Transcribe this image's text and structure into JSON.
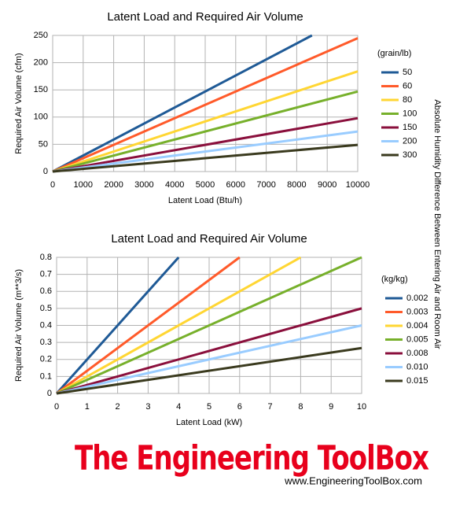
{
  "chart_data": [
    {
      "type": "line",
      "title": "Latent Load and Required Air Volume",
      "x_label": "Latent Load (Btu/h)",
      "y_label": "Required Air Volume (cfm)",
      "xlim": [
        0,
        10000
      ],
      "ylim": [
        0,
        250
      ],
      "xticks": [
        0,
        1000,
        2000,
        3000,
        4000,
        5000,
        6000,
        7000,
        8000,
        9000,
        10000
      ],
      "yticks": [
        0,
        50,
        100,
        150,
        200,
        250
      ],
      "grid": true,
      "legend_title": "(grain/lb)",
      "legend": "right",
      "series": [
        {
          "name": "50",
          "color": "#1f5a96",
          "x": [
            0,
            8500
          ],
          "values": [
            0,
            250
          ]
        },
        {
          "name": "60",
          "color": "#ff5a2a",
          "x": [
            0,
            10000
          ],
          "values": [
            0,
            245
          ]
        },
        {
          "name": "80",
          "color": "#ffd633",
          "x": [
            0,
            10000
          ],
          "values": [
            0,
            184
          ]
        },
        {
          "name": "100",
          "color": "#77b02b",
          "x": [
            0,
            10000
          ],
          "values": [
            0,
            147
          ]
        },
        {
          "name": "150",
          "color": "#8a0f3c",
          "x": [
            0,
            10000
          ],
          "values": [
            0,
            98
          ]
        },
        {
          "name": "200",
          "color": "#99ccff",
          "x": [
            0,
            10000
          ],
          "values": [
            0,
            73.5
          ]
        },
        {
          "name": "300",
          "color": "#3a3a1e",
          "x": [
            0,
            10000
          ],
          "values": [
            0,
            49
          ]
        }
      ]
    },
    {
      "type": "line",
      "title": "Latent Load and Required Air Volume",
      "x_label": "Latent Load (kW)",
      "y_label": "Required Air Volume (m**3/s)",
      "xlim": [
        0,
        10
      ],
      "ylim": [
        0,
        0.8
      ],
      "xticks": [
        0,
        1,
        2,
        3,
        4,
        5,
        6,
        7,
        8,
        9,
        10
      ],
      "yticks": [
        0,
        0.1,
        0.2,
        0.3,
        0.4,
        0.5,
        0.6,
        0.7,
        0.8
      ],
      "grid": true,
      "legend_title": "(kg/kg)",
      "legend": "right",
      "series": [
        {
          "name": "0.002",
          "color": "#1f5a96",
          "x": [
            0,
            4
          ],
          "values": [
            0,
            0.8
          ]
        },
        {
          "name": "0.003",
          "color": "#ff5a2a",
          "x": [
            0,
            6
          ],
          "values": [
            0,
            0.8
          ]
        },
        {
          "name": "0.004",
          "color": "#ffd633",
          "x": [
            0,
            8
          ],
          "values": [
            0,
            0.8
          ]
        },
        {
          "name": "0.005",
          "color": "#77b02b",
          "x": [
            0,
            10
          ],
          "values": [
            0,
            0.8
          ]
        },
        {
          "name": "0.008",
          "color": "#8a0f3c",
          "x": [
            0,
            10
          ],
          "values": [
            0,
            0.5
          ]
        },
        {
          "name": "0.010",
          "color": "#99ccff",
          "x": [
            0,
            10
          ],
          "values": [
            0,
            0.4
          ]
        },
        {
          "name": "0.015",
          "color": "#3a3a1e",
          "x": [
            0,
            10
          ],
          "values": [
            0,
            0.267
          ]
        }
      ]
    }
  ],
  "side_label": "Absolute Humidity Difference Between Entering Air and Room Air",
  "footer": {
    "logo": "The Engineering ToolBox",
    "url": "www.EngineeringToolBox.com"
  }
}
